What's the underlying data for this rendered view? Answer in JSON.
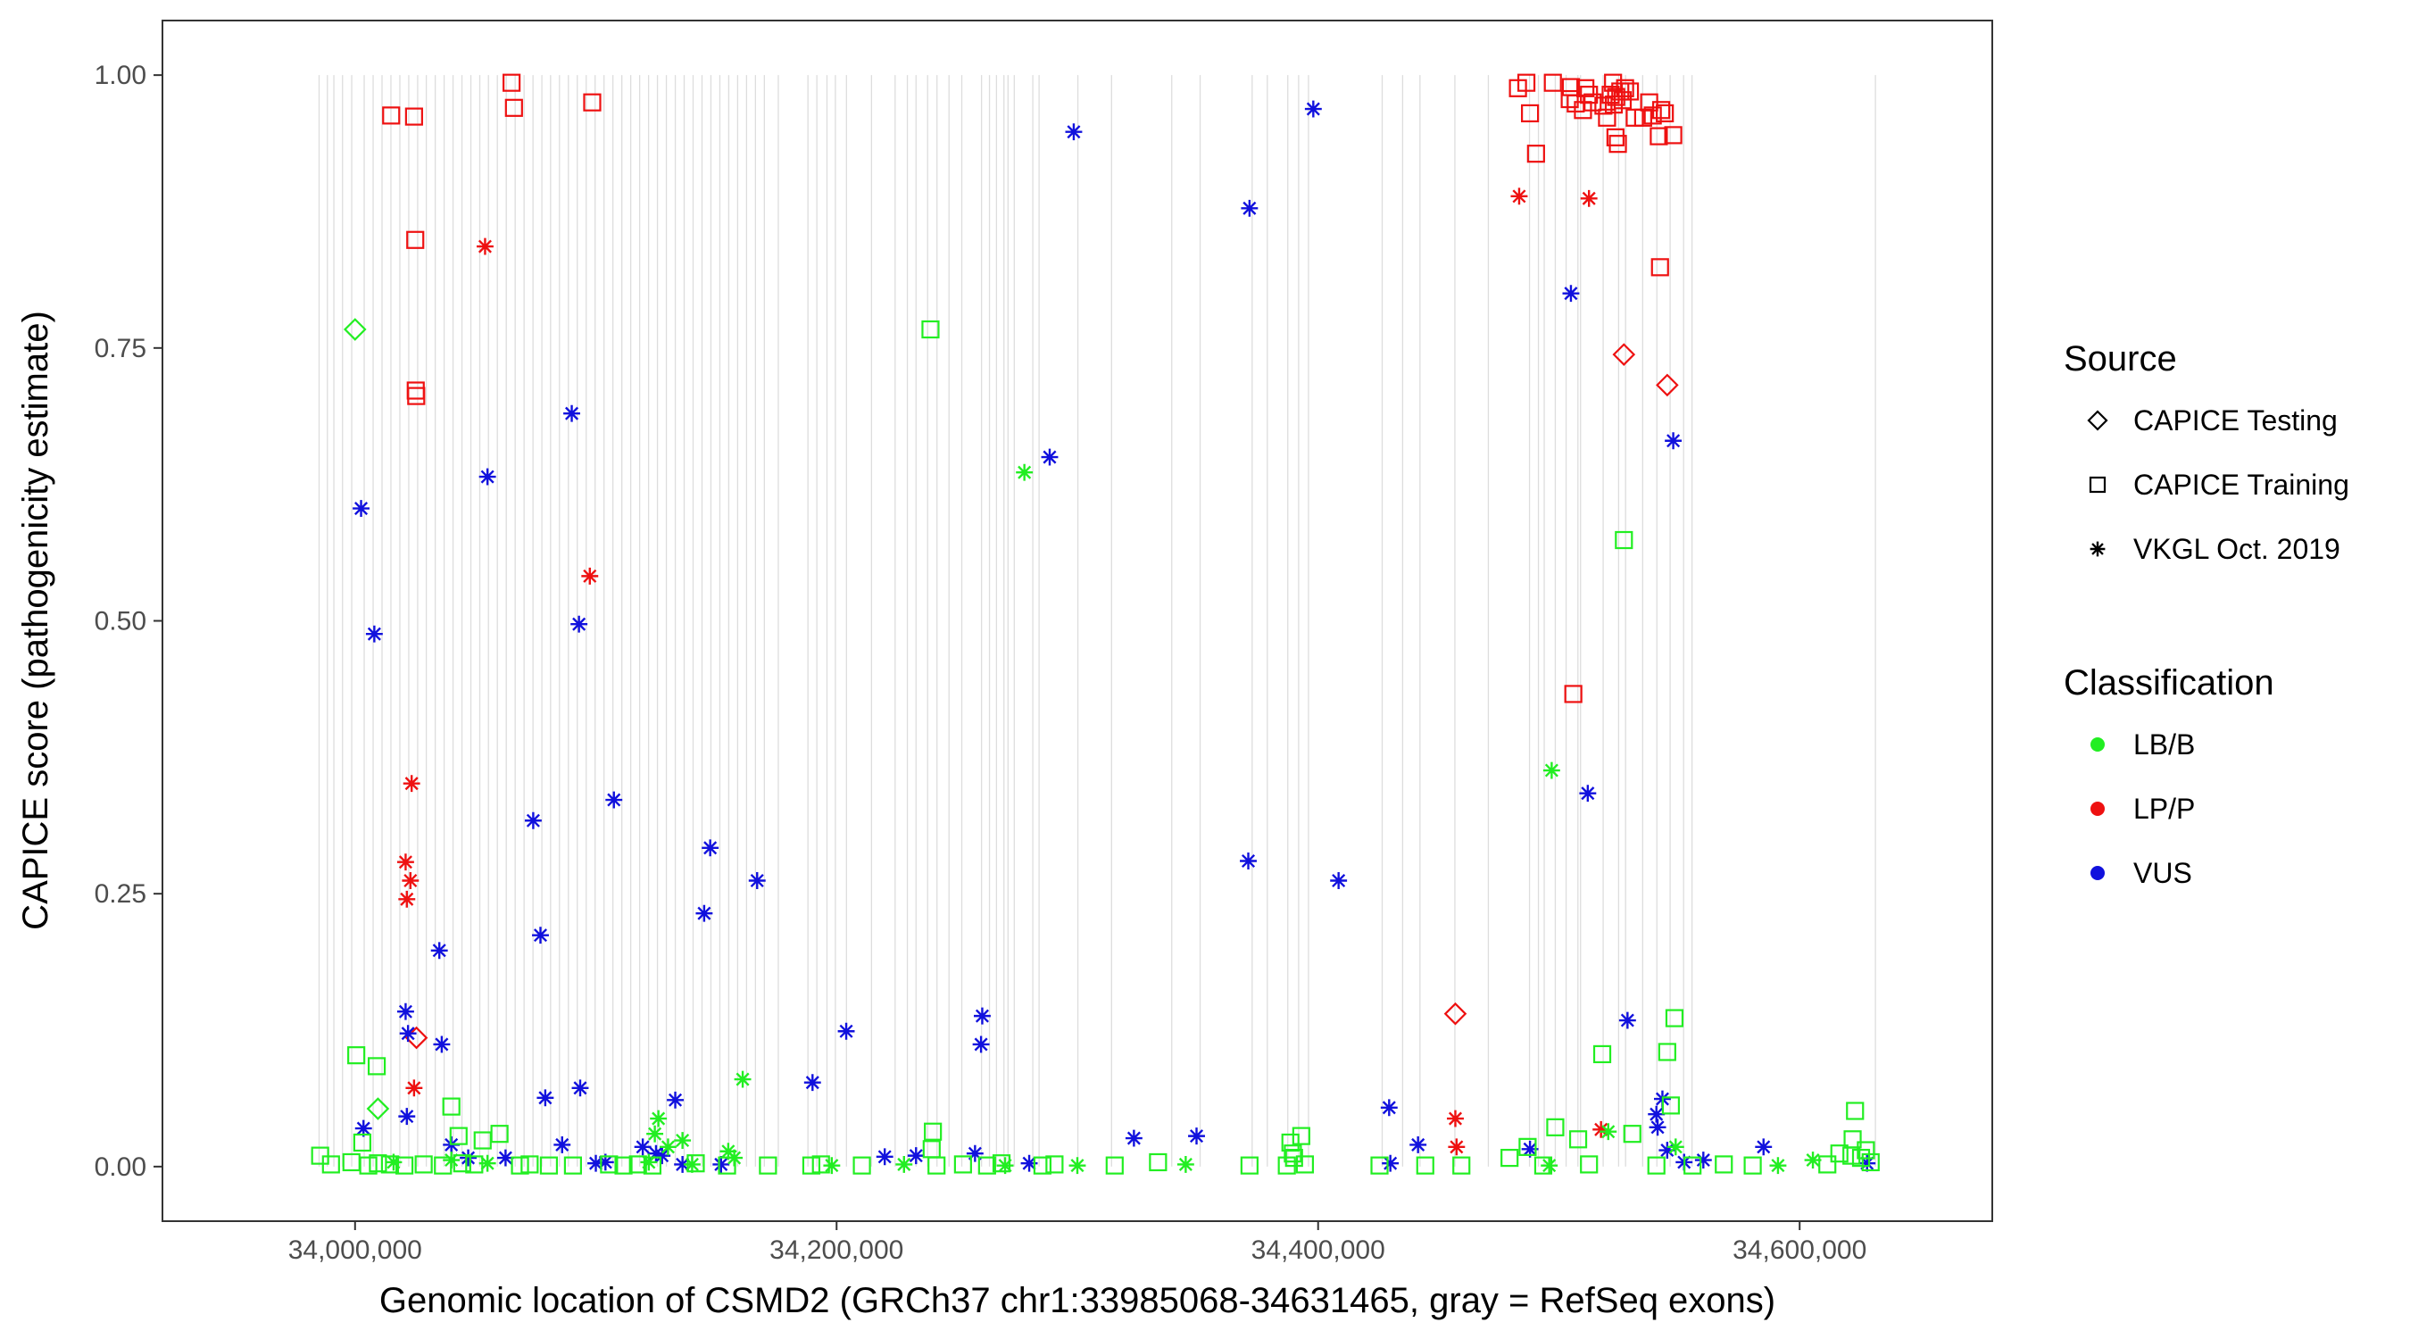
{
  "chart_data": {
    "type": "scatter",
    "xlabel": "Genomic location of CSMD2 (GRCh37 chr1:33985068-34631465, gray = RefSeq exons)",
    "ylabel": "CAPICE score (pathogenicity estimate)",
    "xlim": [
      33920000,
      34680000
    ],
    "ylim": [
      -0.05,
      1.05
    ],
    "x_ticks": [
      34000000,
      34200000,
      34400000,
      34600000
    ],
    "x_tick_labels": [
      "34,000,000",
      "34,200,000",
      "34,400,000",
      "34,600,000"
    ],
    "y_ticks": [
      0,
      0.25,
      0.5,
      0.75,
      1.0
    ],
    "y_tick_labels": [
      "0.00",
      "0.25",
      "0.50",
      "0.75",
      "1.00"
    ],
    "exons": [
      33985068,
      33988500,
      33991200,
      33994800,
      33998600,
      34003800,
      34007500,
      34011200,
      34014900,
      34018600,
      34022300,
      34026000,
      34029600,
      34033300,
      34037000,
      34040700,
      34044400,
      34048100,
      34051800,
      34055400,
      34059100,
      34062800,
      34066500,
      34070200,
      34073900,
      34077600,
      34081200,
      34084900,
      34088600,
      34092300,
      34096000,
      34099700,
      34103400,
      34107100,
      34110800,
      34114500,
      34118200,
      34121900,
      34125600,
      34129300,
      34133000,
      34136700,
      34140400,
      34144100,
      34147800,
      34151500,
      34155200,
      34158900,
      34162600,
      34166300,
      34170000,
      34175800,
      34188100,
      34191800,
      34196000,
      34199500,
      34204100,
      34214500,
      34224300,
      34229400,
      34233000,
      34237800,
      34241700,
      34246700,
      34252000,
      34260200,
      34263500,
      34266400,
      34269500,
      34271200,
      34273800,
      34281500,
      34284100,
      34300200,
      34314200,
      34339200,
      34351000,
      34372600,
      34378900,
      34387400,
      34391900,
      34396000,
      34426600,
      34435100,
      34442300,
      34456800,
      34470700,
      34487800,
      34491500,
      34493900,
      34498500,
      34503000,
      34507900,
      34509000,
      34518400,
      34524800,
      34527700,
      34534800,
      34540700,
      34546200,
      34551800,
      34555300,
      34631465
    ],
    "legend": {
      "source_title": "Source",
      "source_items": [
        "CAPICE Testing",
        "CAPICE Training",
        "VKGL Oct. 2019"
      ],
      "class_title": "Classification",
      "class_items": [
        "LB/B",
        "LP/P",
        "VUS"
      ]
    },
    "colors": {
      "LB/B": "#22ee22",
      "LP/P": "#ee1111",
      "VUS": "#1111dd",
      "exon": "#dddddd",
      "panel_border": "#333333",
      "axis_text": "#4d4d4d"
    },
    "series": [
      {
        "name": "CAPICE Training",
        "classification": "LP/P",
        "shape": "square",
        "x": [
          34015000,
          34024500,
          34065000,
          34066000,
          34098500,
          34025000,
          34025200,
          34025400,
          34483000,
          34486500,
          34488000,
          34490500,
          34497500,
          34504500,
          34505000,
          34507000,
          34510000,
          34511000,
          34512500,
          34514000,
          34518500,
          34520000,
          34521500,
          34522500,
          34523500,
          34524500,
          34525500,
          34526500,
          34527500,
          34529500,
          34531500,
          34535000,
          34537500,
          34539000,
          34541500,
          34542500,
          34544000,
          34547500,
          34506000,
          34542000,
          34523800,
          34522800
        ],
        "y": [
          0.963,
          0.962,
          0.993,
          0.97,
          0.975,
          0.849,
          0.711,
          0.706,
          0.988,
          0.993,
          0.965,
          0.928,
          0.993,
          0.978,
          0.989,
          0.974,
          0.968,
          0.988,
          0.982,
          0.975,
          0.972,
          0.961,
          0.982,
          0.993,
          0.943,
          0.937,
          0.985,
          0.977,
          0.988,
          0.985,
          0.961,
          0.961,
          0.975,
          0.963,
          0.944,
          0.968,
          0.965,
          0.945,
          0.433,
          0.824,
          0.98,
          0.973
        ]
      },
      {
        "name": "CAPICE Testing",
        "classification": "LP/P",
        "shape": "diamond",
        "x": [
          34527000,
          34545000,
          34025500,
          34457000
        ],
        "y": [
          0.744,
          0.716,
          0.118,
          0.14
        ]
      },
      {
        "name": "VKGL Oct. 2019",
        "classification": "LP/P",
        "shape": "asterisk",
        "x": [
          34054000,
          34097500,
          34023500,
          34021000,
          34021500,
          34023000,
          34024500,
          34483500,
          34512500,
          34457000,
          34457500,
          34517500
        ],
        "y": [
          0.843,
          0.541,
          0.351,
          0.279,
          0.245,
          0.262,
          0.072,
          0.889,
          0.887,
          0.044,
          0.018,
          0.034
        ]
      },
      {
        "name": "VKGL Oct. 2019",
        "classification": "VUS",
        "shape": "asterisk",
        "x": [
          34298500,
          34398000,
          34371500,
          34505000,
          34547500,
          34002500,
          34008000,
          34090000,
          34055000,
          34093000,
          34107500,
          34512000,
          34371000,
          34408500,
          34074000,
          34147500,
          34167000,
          34077000,
          34035000,
          34145000,
          34021000,
          34022000,
          34036000,
          34204000,
          34260500,
          34260000,
          34190000,
          34079000,
          34093500,
          34133000,
          34288500,
          34429500,
          34528500,
          34003500,
          34021500,
          34323500,
          34349500,
          34441500,
          34540500,
          34543000,
          34541000,
          34585000,
          34545000,
          34086000,
          34119500,
          34125000,
          34127500,
          34047000,
          34257500,
          34220000,
          34233000,
          34040000,
          34062500,
          34280000,
          34104000,
          34100000,
          34136000,
          34152000,
          34430000,
          34488000,
          34552000,
          34560000,
          34628000
        ],
        "y": [
          0.948,
          0.969,
          0.878,
          0.8,
          0.665,
          0.603,
          0.488,
          0.69,
          0.632,
          0.497,
          0.336,
          0.342,
          0.28,
          0.262,
          0.317,
          0.292,
          0.262,
          0.212,
          0.198,
          0.232,
          0.142,
          0.122,
          0.112,
          0.124,
          0.138,
          0.112,
          0.077,
          0.063,
          0.072,
          0.061,
          0.65,
          0.054,
          0.134,
          0.035,
          0.046,
          0.026,
          0.028,
          0.02,
          0.048,
          0.062,
          0.036,
          0.018,
          0.015,
          0.02,
          0.018,
          0.012,
          0.01,
          0.008,
          0.012,
          0.009,
          0.01,
          0.02,
          0.008,
          0.003,
          0.004,
          0.003,
          0.002,
          0.002,
          0.003,
          0.016,
          0.004,
          0.006,
          0.003
        ]
      },
      {
        "name": "CAPICE Training",
        "classification": "LB/B",
        "shape": "square",
        "x": [
          34239000,
          34527000,
          34548000,
          34000500,
          34009000,
          34040000,
          34043000,
          34060000,
          34053000,
          34518000,
          34545000,
          34388500,
          34389500,
          34390000,
          34393000,
          34498500,
          34508000,
          34530500,
          34546500,
          34623000,
          34622000,
          34627500,
          34479500,
          34487000,
          34240000,
          34239500,
          34003000,
          33985500,
          33990000,
          33998500,
          34005500,
          34009500,
          34014500,
          34020500,
          34028500,
          34036500,
          34044500,
          34049500,
          34068500,
          34072500,
          34080500,
          34090500,
          34105500,
          34111500,
          34117500,
          34123500,
          34141500,
          34154500,
          34171500,
          34189500,
          34193500,
          34210500,
          34241500,
          34252500,
          34262500,
          34268500,
          34285500,
          34290500,
          34315500,
          34333500,
          34371500,
          34387000,
          34394500,
          34425500,
          34444500,
          34459500,
          34493500,
          34512500,
          34540500,
          34555500,
          34568500,
          34580500,
          34611500,
          34616500,
          34621500,
          34625500,
          34629500
        ],
        "y": [
          0.767,
          0.574,
          0.136,
          0.102,
          0.092,
          0.055,
          0.028,
          0.03,
          0.024,
          0.103,
          0.105,
          0.022,
          0.012,
          0.008,
          0.028,
          0.036,
          0.025,
          0.03,
          0.056,
          0.051,
          0.025,
          0.015,
          0.008,
          0.018,
          0.032,
          0.016,
          0.022,
          0.01,
          0.002,
          0.004,
          0.001,
          0.003,
          0.002,
          0.001,
          0.002,
          0.001,
          0.003,
          0.002,
          0.001,
          0.002,
          0.001,
          0.001,
          0.002,
          0.001,
          0.002,
          0.001,
          0.003,
          0.001,
          0.001,
          0.001,
          0.002,
          0.001,
          0.001,
          0.002,
          0.001,
          0.003,
          0.001,
          0.002,
          0.001,
          0.004,
          0.001,
          0.001,
          0.002,
          0.001,
          0.001,
          0.001,
          0.001,
          0.002,
          0.001,
          0.001,
          0.002,
          0.001,
          0.002,
          0.012,
          0.01,
          0.008,
          0.004
        ]
      },
      {
        "name": "CAPICE Testing",
        "classification": "LB/B",
        "shape": "diamond",
        "x": [
          34000000,
          34009500
        ],
        "y": [
          0.767,
          0.053
        ]
      },
      {
        "name": "VKGL Oct. 2019",
        "classification": "LB/B",
        "shape": "asterisk",
        "x": [
          34278000,
          34497000,
          34161000,
          34126000,
          34124500,
          34136000,
          34155000,
          34130000,
          34157500,
          34040000,
          34016000,
          34055000,
          34140000,
          34198000,
          34228000,
          34270000,
          34300000,
          34345000,
          34496000,
          34520500,
          34548500,
          34591000,
          34605500,
          34122000
        ],
        "y": [
          0.636,
          0.363,
          0.08,
          0.044,
          0.03,
          0.024,
          0.014,
          0.018,
          0.008,
          0.006,
          0.004,
          0.003,
          0.002,
          0.001,
          0.002,
          0.001,
          0.001,
          0.002,
          0.001,
          0.032,
          0.018,
          0.001,
          0.006,
          0.004
        ]
      }
    ]
  }
}
